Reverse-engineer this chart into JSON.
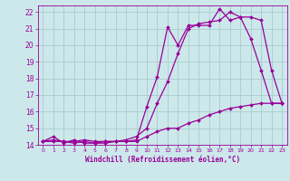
{
  "background_color": "#cce8ea",
  "grid_color": "#aacccc",
  "line_color": "#990099",
  "marker_color": "#990099",
  "xlabel": "Windchill (Refroidissement éolien,°C)",
  "xlabel_color": "#990099",
  "tick_color": "#990099",
  "xlim": [
    -0.5,
    23.5
  ],
  "ylim": [
    14,
    22.4
  ],
  "xticks": [
    0,
    1,
    2,
    3,
    4,
    5,
    6,
    7,
    8,
    9,
    10,
    11,
    12,
    13,
    14,
    15,
    16,
    17,
    18,
    19,
    20,
    21,
    22,
    23
  ],
  "yticks": [
    14,
    15,
    16,
    17,
    18,
    19,
    20,
    21,
    22
  ],
  "line1_x": [
    0,
    1,
    2,
    3,
    4,
    5,
    6,
    7,
    8,
    9,
    10,
    11,
    12,
    13,
    14,
    15,
    16,
    17,
    18,
    19,
    20,
    21,
    22,
    23
  ],
  "line1_y": [
    14.2,
    14.5,
    14.1,
    14.3,
    14.1,
    14.1,
    14.2,
    14.2,
    14.2,
    14.3,
    16.3,
    18.1,
    21.1,
    20.0,
    21.2,
    21.2,
    21.2,
    22.2,
    21.5,
    21.7,
    20.4,
    18.5,
    16.5,
    16.5
  ],
  "line2_x": [
    0,
    1,
    2,
    3,
    4,
    5,
    6,
    7,
    8,
    9,
    10,
    11,
    12,
    13,
    14,
    15,
    16,
    17,
    18,
    19,
    20,
    21,
    22,
    23
  ],
  "line2_y": [
    14.2,
    14.2,
    14.2,
    14.2,
    14.3,
    14.2,
    14.2,
    14.2,
    14.3,
    14.5,
    15.0,
    16.5,
    17.8,
    19.5,
    21.0,
    21.3,
    21.4,
    21.5,
    22.0,
    21.7,
    21.7,
    21.5,
    18.5,
    16.5
  ],
  "line3_x": [
    0,
    1,
    2,
    3,
    4,
    5,
    6,
    7,
    8,
    9,
    10,
    11,
    12,
    13,
    14,
    15,
    16,
    17,
    18,
    19,
    20,
    21,
    22,
    23
  ],
  "line3_y": [
    14.2,
    14.3,
    14.2,
    14.1,
    14.2,
    14.1,
    14.1,
    14.2,
    14.2,
    14.2,
    14.5,
    14.8,
    15.0,
    15.0,
    15.3,
    15.5,
    15.8,
    16.0,
    16.2,
    16.3,
    16.4,
    16.5,
    16.5,
    16.5
  ]
}
